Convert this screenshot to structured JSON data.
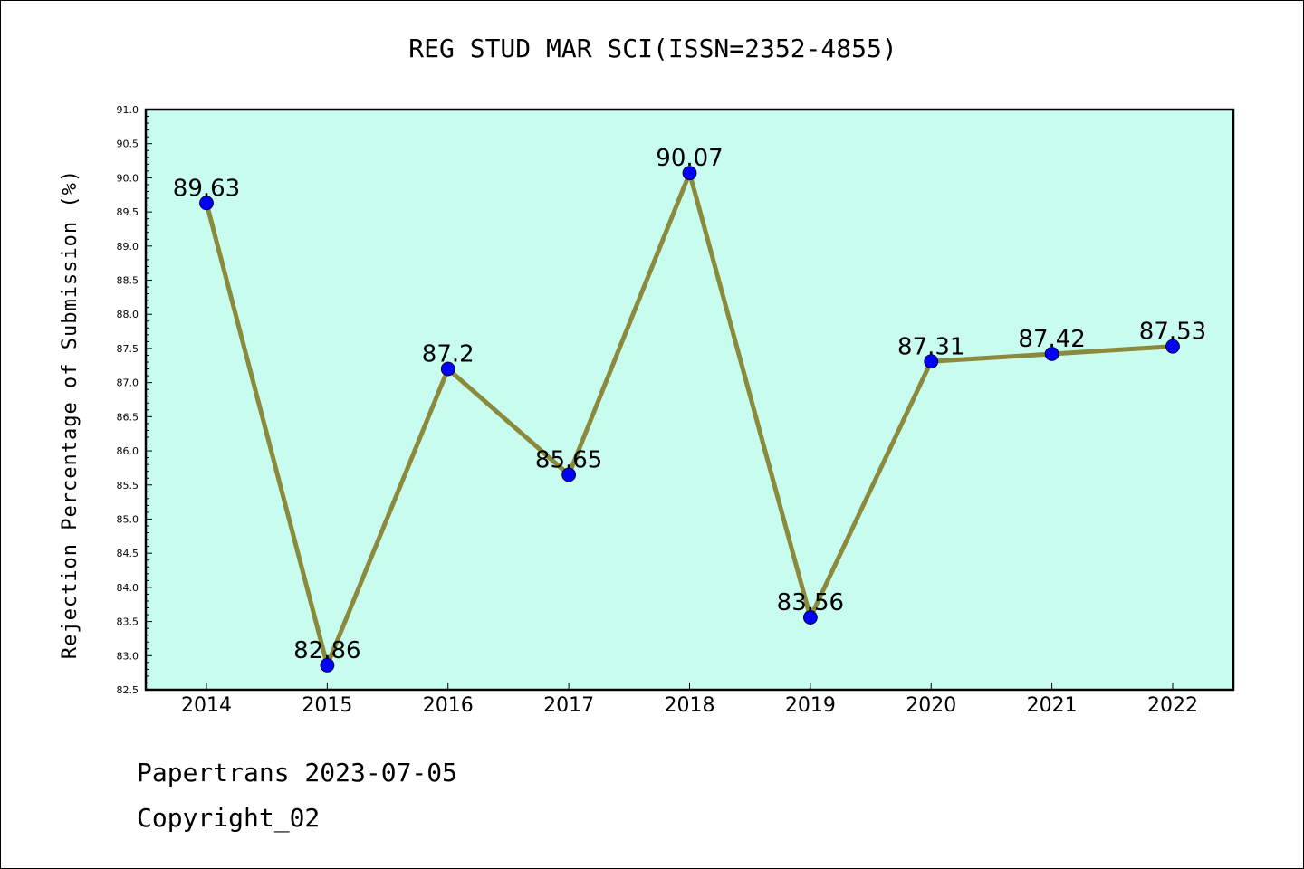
{
  "chart_data": {
    "type": "line",
    "title": "REG STUD MAR SCI(ISSN=2352-4855)",
    "xlabel": "",
    "ylabel": "Rejection Percentage of Submission (%)",
    "categories": [
      "2014",
      "2015",
      "2016",
      "2017",
      "2018",
      "2019",
      "2020",
      "2021",
      "2022"
    ],
    "series": [
      {
        "values": [
          89.63,
          82.86,
          87.2,
          85.65,
          90.07,
          83.56,
          87.31,
          87.42,
          87.53
        ],
        "labels": [
          "89.63",
          "82.86",
          "87.2",
          "85.65",
          "90.07",
          "83.56",
          "87.31",
          "87.42",
          "87.53"
        ],
        "line_color": "#8b8a3c",
        "marker_color": "#0000ff"
      }
    ],
    "ylim": [
      82.5,
      91.0
    ],
    "y_ticks": [
      "82.5",
      "83.0",
      "83.5",
      "84.0",
      "84.5",
      "85.0",
      "85.5",
      "86.0",
      "86.5",
      "87.0",
      "87.5",
      "88.0",
      "88.5",
      "89.0",
      "89.5",
      "90.0",
      "90.5",
      "91.0"
    ],
    "grid": false,
    "plot_background": "#c8fcee"
  },
  "footer": {
    "line1": "Papertrans 2023-07-05",
    "line2": "Copyright_02"
  }
}
